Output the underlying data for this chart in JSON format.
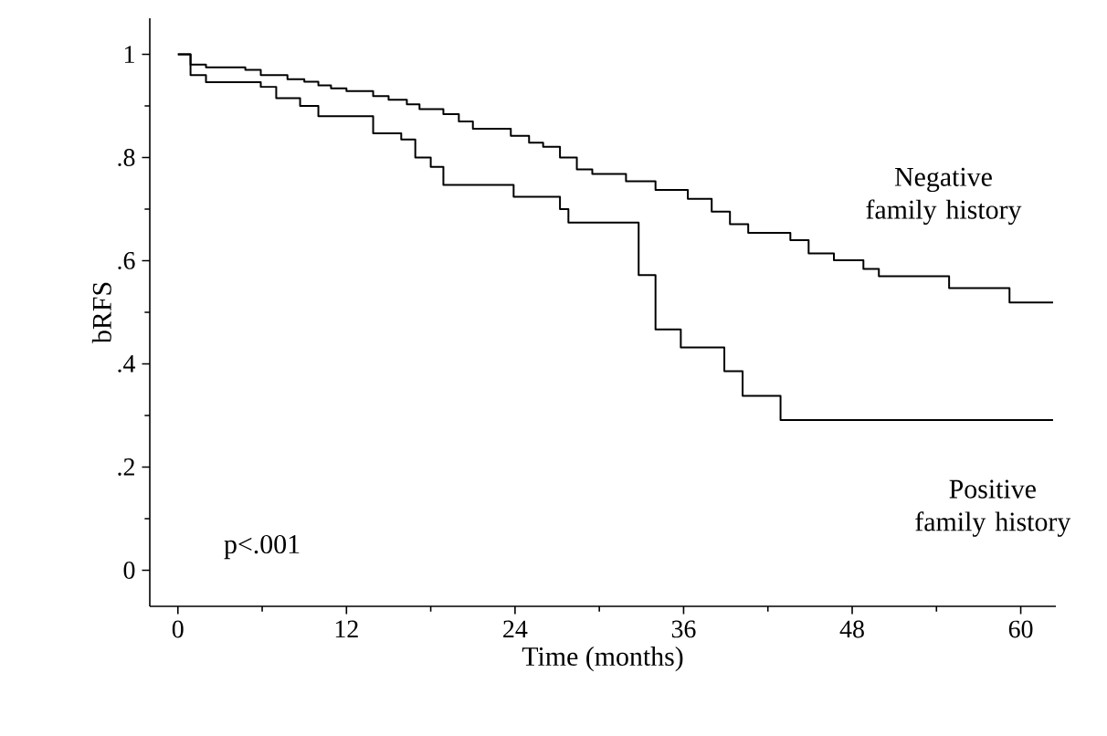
{
  "chart_data": {
    "type": "step",
    "xlabel": "Time (months)",
    "ylabel": "bRFS",
    "xlim": [
      -2,
      62.5
    ],
    "ylim": [
      -0.07,
      1.07
    ],
    "xticks": [
      0,
      12,
      24,
      36,
      48,
      60
    ],
    "yticks": [
      0,
      {
        "value": 0.2,
        "label": ".2"
      },
      {
        "value": 0.4,
        "label": ".4"
      },
      {
        "value": 0.6,
        "label": ".6"
      },
      {
        "value": 0.8,
        "label": ".8"
      },
      1
    ],
    "grid": false,
    "marker": "none",
    "line_style": "solid",
    "annotations": [
      "Negative family history",
      "Positive family history",
      "p<.001"
    ],
    "series": [
      {
        "color": "#000000",
        "x": [
          0,
          0.9,
          2,
          4.8,
          5.9,
          7.8,
          9,
          10,
          10.9,
          12,
          13.9,
          15,
          16.3,
          17.2,
          18.9,
          20,
          21,
          23.7,
          25,
          26,
          27.2,
          28.4,
          29.5,
          31.9,
          34,
          36.3,
          38,
          39.3,
          40.6,
          43.6,
          44.9,
          46.7,
          48.8,
          49.9,
          54.9,
          59.2,
          62.3
        ],
        "values": [
          1,
          0.98,
          0.975,
          0.97,
          0.96,
          0.952,
          0.947,
          0.94,
          0.934,
          0.929,
          0.919,
          0.912,
          0.903,
          0.894,
          0.884,
          0.87,
          0.856,
          0.842,
          0.829,
          0.821,
          0.8,
          0.777,
          0.768,
          0.754,
          0.737,
          0.72,
          0.695,
          0.671,
          0.654,
          0.64,
          0.614,
          0.601,
          0.584,
          0.57,
          0.547,
          0.519,
          0.519
        ]
      },
      {
        "color": "#000000",
        "x": [
          0,
          0.9,
          2,
          5.9,
          7,
          8.7,
          10,
          13.9,
          15.9,
          16.9,
          18,
          18.9,
          23.9,
          27.2,
          27.8,
          32.8,
          34,
          35.8,
          38.9,
          40.2,
          42.9,
          62.3
        ],
        "values": [
          1,
          0.96,
          0.946,
          0.937,
          0.915,
          0.9,
          0.88,
          0.847,
          0.835,
          0.8,
          0.782,
          0.747,
          0.724,
          0.7,
          0.674,
          0.572,
          0.467,
          0.432,
          0.386,
          0.338,
          0.291,
          0.291
        ]
      }
    ]
  }
}
